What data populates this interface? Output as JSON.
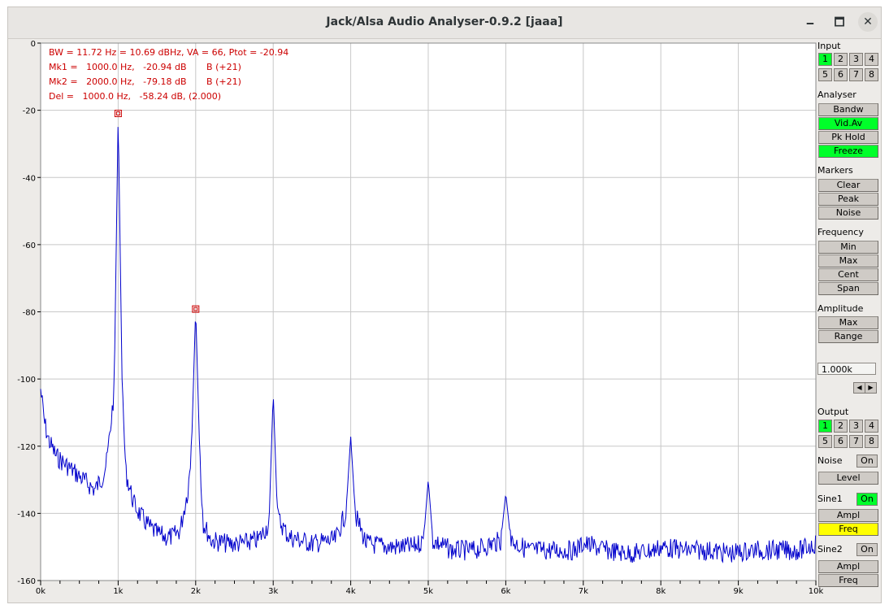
{
  "window": {
    "title": "Jack/Alsa Audio Analyser-0.9.2 [jaaa]",
    "controls": {
      "minimize": "🗕",
      "maximize": "🗖",
      "close": "✕"
    }
  },
  "info_lines": [
    "BW = 11.72 Hz = 10.69 dBHz, VA = 66, Ptot = -20.94",
    "Mk1 =   1000.0 Hz,   -20.94 dB       B (+21)",
    "Mk2 =   2000.0 Hz,   -79.18 dB       B (+21)",
    "Del =   1000.0 Hz,   -58.24 dB, (2.000)"
  ],
  "colors": {
    "trace": "#0000cc",
    "marker": "#cc0000",
    "info_text": "#cc0000",
    "grid": "#c8c8c8",
    "active": "#00ff2a",
    "highlight": "#ffff00"
  },
  "chart_data": {
    "type": "line",
    "xlabel": "",
    "ylabel": "",
    "xlim": [
      0,
      10000
    ],
    "ylim": [
      -160,
      0
    ],
    "x_ticks": [
      "0k",
      "1k",
      "2k",
      "3k",
      "4k",
      "5k",
      "6k",
      "7k",
      "8k",
      "9k",
      "10k"
    ],
    "y_ticks": [
      "0",
      "-20",
      "-40",
      "-60",
      "-80",
      "-100",
      "-120",
      "-140",
      "-160"
    ],
    "grid": true,
    "series": [
      {
        "x": [
          0,
          50,
          100,
          200,
          300,
          400,
          500,
          600,
          700,
          800,
          850,
          900,
          950,
          1000,
          1050,
          1100,
          1200,
          1300,
          1400,
          1500,
          1600,
          1700,
          1800,
          1900,
          1950,
          2000,
          2050,
          2100,
          2200,
          2400,
          2600,
          2800,
          2950,
          3000,
          3050,
          3200,
          3500,
          3800,
          3950,
          4000,
          4050,
          4200,
          4500,
          4800,
          4950,
          5000,
          5050,
          5300,
          5600,
          5950,
          6000,
          6050,
          6300,
          6600,
          6900,
          7000,
          7300,
          7600,
          7900,
          8000,
          8300,
          8600,
          8900,
          9200,
          9500,
          9800,
          10000
        ],
        "y": [
          -100,
          -110,
          -115,
          -120,
          -122,
          -124,
          -126,
          -128,
          -130,
          -126,
          -122,
          -112,
          -100,
          -21,
          -100,
          -125,
          -134,
          -138,
          -141,
          -143,
          -144,
          -144,
          -142,
          -130,
          -118,
          -79,
          -120,
          -140,
          -145,
          -146,
          -146,
          -145,
          -140,
          -104,
          -138,
          -144,
          -146,
          -145,
          -136,
          -117,
          -137,
          -146,
          -147,
          -147,
          -145,
          -130,
          -145,
          -148,
          -148,
          -145,
          -134,
          -145,
          -148,
          -148,
          -148,
          -146,
          -148,
          -149,
          -148,
          -147,
          -148,
          -148,
          -149,
          -148,
          -148,
          -148,
          -146
        ]
      }
    ],
    "markers": [
      {
        "x": 1000,
        "y": -20.94
      },
      {
        "x": 2000,
        "y": -79.18
      }
    ]
  },
  "panel": {
    "input": {
      "label": "Input",
      "channels": [
        "1",
        "2",
        "3",
        "4",
        "5",
        "6",
        "7",
        "8"
      ],
      "active": "1"
    },
    "analyser": {
      "label": "Analyser",
      "buttons": [
        "Bandw",
        "Vid.Av",
        "Pk Hold",
        "Freeze"
      ],
      "active": [
        "Vid.Av",
        "Freeze"
      ]
    },
    "markers": {
      "label": "Markers",
      "buttons": [
        "Clear",
        "Peak",
        "Noise"
      ]
    },
    "frequency": {
      "label": "Frequency",
      "buttons": [
        "Min",
        "Max",
        "Cent",
        "Span"
      ]
    },
    "amplitude": {
      "label": "Amplitude",
      "buttons": [
        "Max",
        "Range"
      ]
    },
    "value_field": "1.000k",
    "arrows": {
      "left": "◀",
      "right": "▶"
    },
    "output": {
      "label": "Output",
      "channels": [
        "1",
        "2",
        "3",
        "4",
        "5",
        "6",
        "7",
        "8"
      ],
      "active": "1"
    },
    "noise": {
      "label": "Noise",
      "on_label": "On",
      "on_active": false,
      "level_label": "Level"
    },
    "sine1": {
      "label": "Sine1",
      "on_label": "On",
      "on_active": true,
      "ampl_label": "Ampl",
      "freq_label": "Freq"
    },
    "sine2": {
      "label": "Sine2",
      "on_label": "On",
      "on_active": false,
      "ampl_label": "Ampl",
      "freq_label": "Freq"
    }
  }
}
